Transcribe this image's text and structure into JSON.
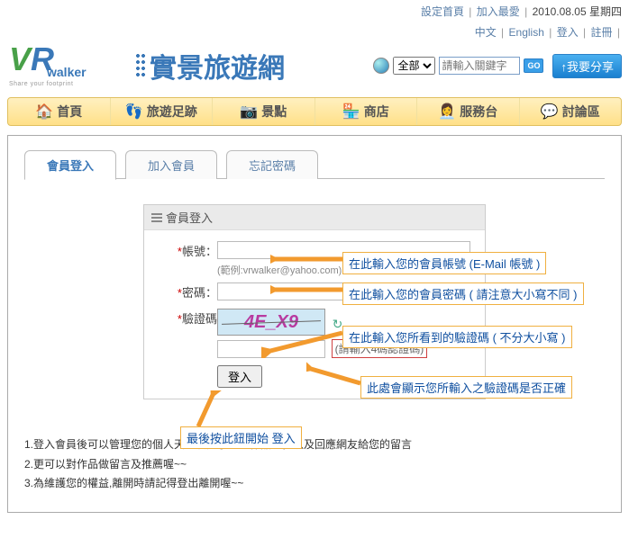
{
  "top": {
    "set_home": "設定首頁",
    "add_fav": "加入最愛",
    "date": "2010.08.05 星期四"
  },
  "lang": {
    "zh": "中文",
    "en": "English",
    "login": "登入",
    "register": "註冊"
  },
  "logo": {
    "walker": "walker",
    "tag": "Share your footprint"
  },
  "site_title": "實景旅遊網",
  "search": {
    "category": "全部",
    "placeholder": "請輸入關鍵字",
    "go": "GO",
    "share": "↑我要分享"
  },
  "nav": [
    {
      "icon": "🏠",
      "label": "首頁"
    },
    {
      "icon": "👣",
      "label": "旅遊足跡"
    },
    {
      "icon": "📷",
      "label": "景點"
    },
    {
      "icon": "🏪",
      "label": "商店"
    },
    {
      "icon": "👩‍💼",
      "label": "服務台"
    },
    {
      "icon": "💬",
      "label": "討論區"
    }
  ],
  "tabs": {
    "login": "會員登入",
    "join": "加入會員",
    "forgot": "忘記密碼"
  },
  "form": {
    "title": "會員登入",
    "account_label": "帳號：",
    "account_hint": "(範例:vrwalker@yahoo.com)",
    "password_label": "密碼：",
    "captcha_label": "驗證碼",
    "captcha_text": "4E_X9",
    "captcha_placeholder": "",
    "captcha_status": "(請輸入4碼認證碼)",
    "login_btn": "登入"
  },
  "callouts": {
    "c1": "在此輸入您的會員帳號 (E-Mail 帳號 )",
    "c2": "在此輸入您的會員密碼 ( 請注意大小寫不同 )",
    "c3": "在此輸入您所看到的驗證碼 ( 不分大小寫 )",
    "c4": "此處會顯示您所輸入之驗證碼是否正確",
    "c5": "最後按此鈕開始 登入"
  },
  "notes": [
    "1.登入會員後可以管理您的個人天地及分享您的作品ㄛ，以及回應網友給您的留言",
    "2.更可以對作品做留言及推薦喔~~",
    "3.為維護您的權益,離開時請記得登出離開喔~~"
  ],
  "colors": {
    "link": "#5a7fa8",
    "nav_bg_top": "#fff0c0",
    "nav_bg_bot": "#ffe088",
    "callout_border": "#f0b040",
    "callout_text": "#1050a0",
    "arrow": "#f29a2e"
  }
}
